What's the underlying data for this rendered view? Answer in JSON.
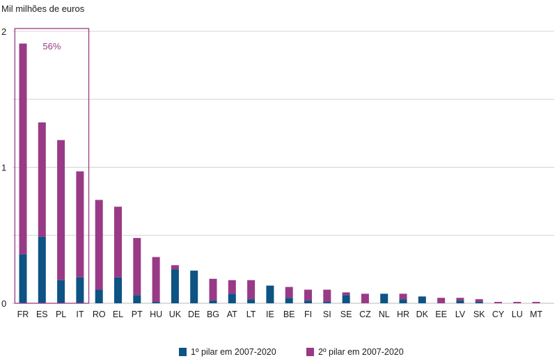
{
  "chart_data": {
    "type": "bar",
    "stacked": true,
    "ylabel": "Mil milhões de euros",
    "ylim": [
      0,
      2
    ],
    "yticks": [
      0,
      1,
      2
    ],
    "grid": true,
    "legend_position": "bottom",
    "categories": [
      "FR",
      "ES",
      "PL",
      "IT",
      "RO",
      "EL",
      "PT",
      "HU",
      "UK",
      "DE",
      "BG",
      "AT",
      "LT",
      "IE",
      "BE",
      "FI",
      "SI",
      "SE",
      "CZ",
      "NL",
      "HR",
      "DK",
      "EE",
      "LV",
      "SK",
      "CY",
      "LU",
      "MT"
    ],
    "series": [
      {
        "name": "1º pilar em 2007-2020",
        "color": "#0d5384",
        "values": [
          0.36,
          0.49,
          0.17,
          0.19,
          0.1,
          0.19,
          0.06,
          0.01,
          0.25,
          0.24,
          0.02,
          0.07,
          0.03,
          0.13,
          0.04,
          0.02,
          0.01,
          0.06,
          0.0,
          0.07,
          0.03,
          0.05,
          0.0,
          0.02,
          0.01,
          0.0,
          0.0,
          0.0
        ]
      },
      {
        "name": "2º pilar em 2007-2020",
        "color": "#993a86",
        "values": [
          1.55,
          0.84,
          1.03,
          0.78,
          0.66,
          0.52,
          0.42,
          0.33,
          0.03,
          0.0,
          0.16,
          0.1,
          0.14,
          0.0,
          0.08,
          0.08,
          0.09,
          0.02,
          0.07,
          0.0,
          0.04,
          0.0,
          0.04,
          0.02,
          0.02,
          0.01,
          0.01,
          0.01
        ]
      }
    ],
    "annotation": {
      "text": "56%",
      "color": "#993a86",
      "box_categories": [
        "FR",
        "ES",
        "PL",
        "IT"
      ]
    }
  }
}
